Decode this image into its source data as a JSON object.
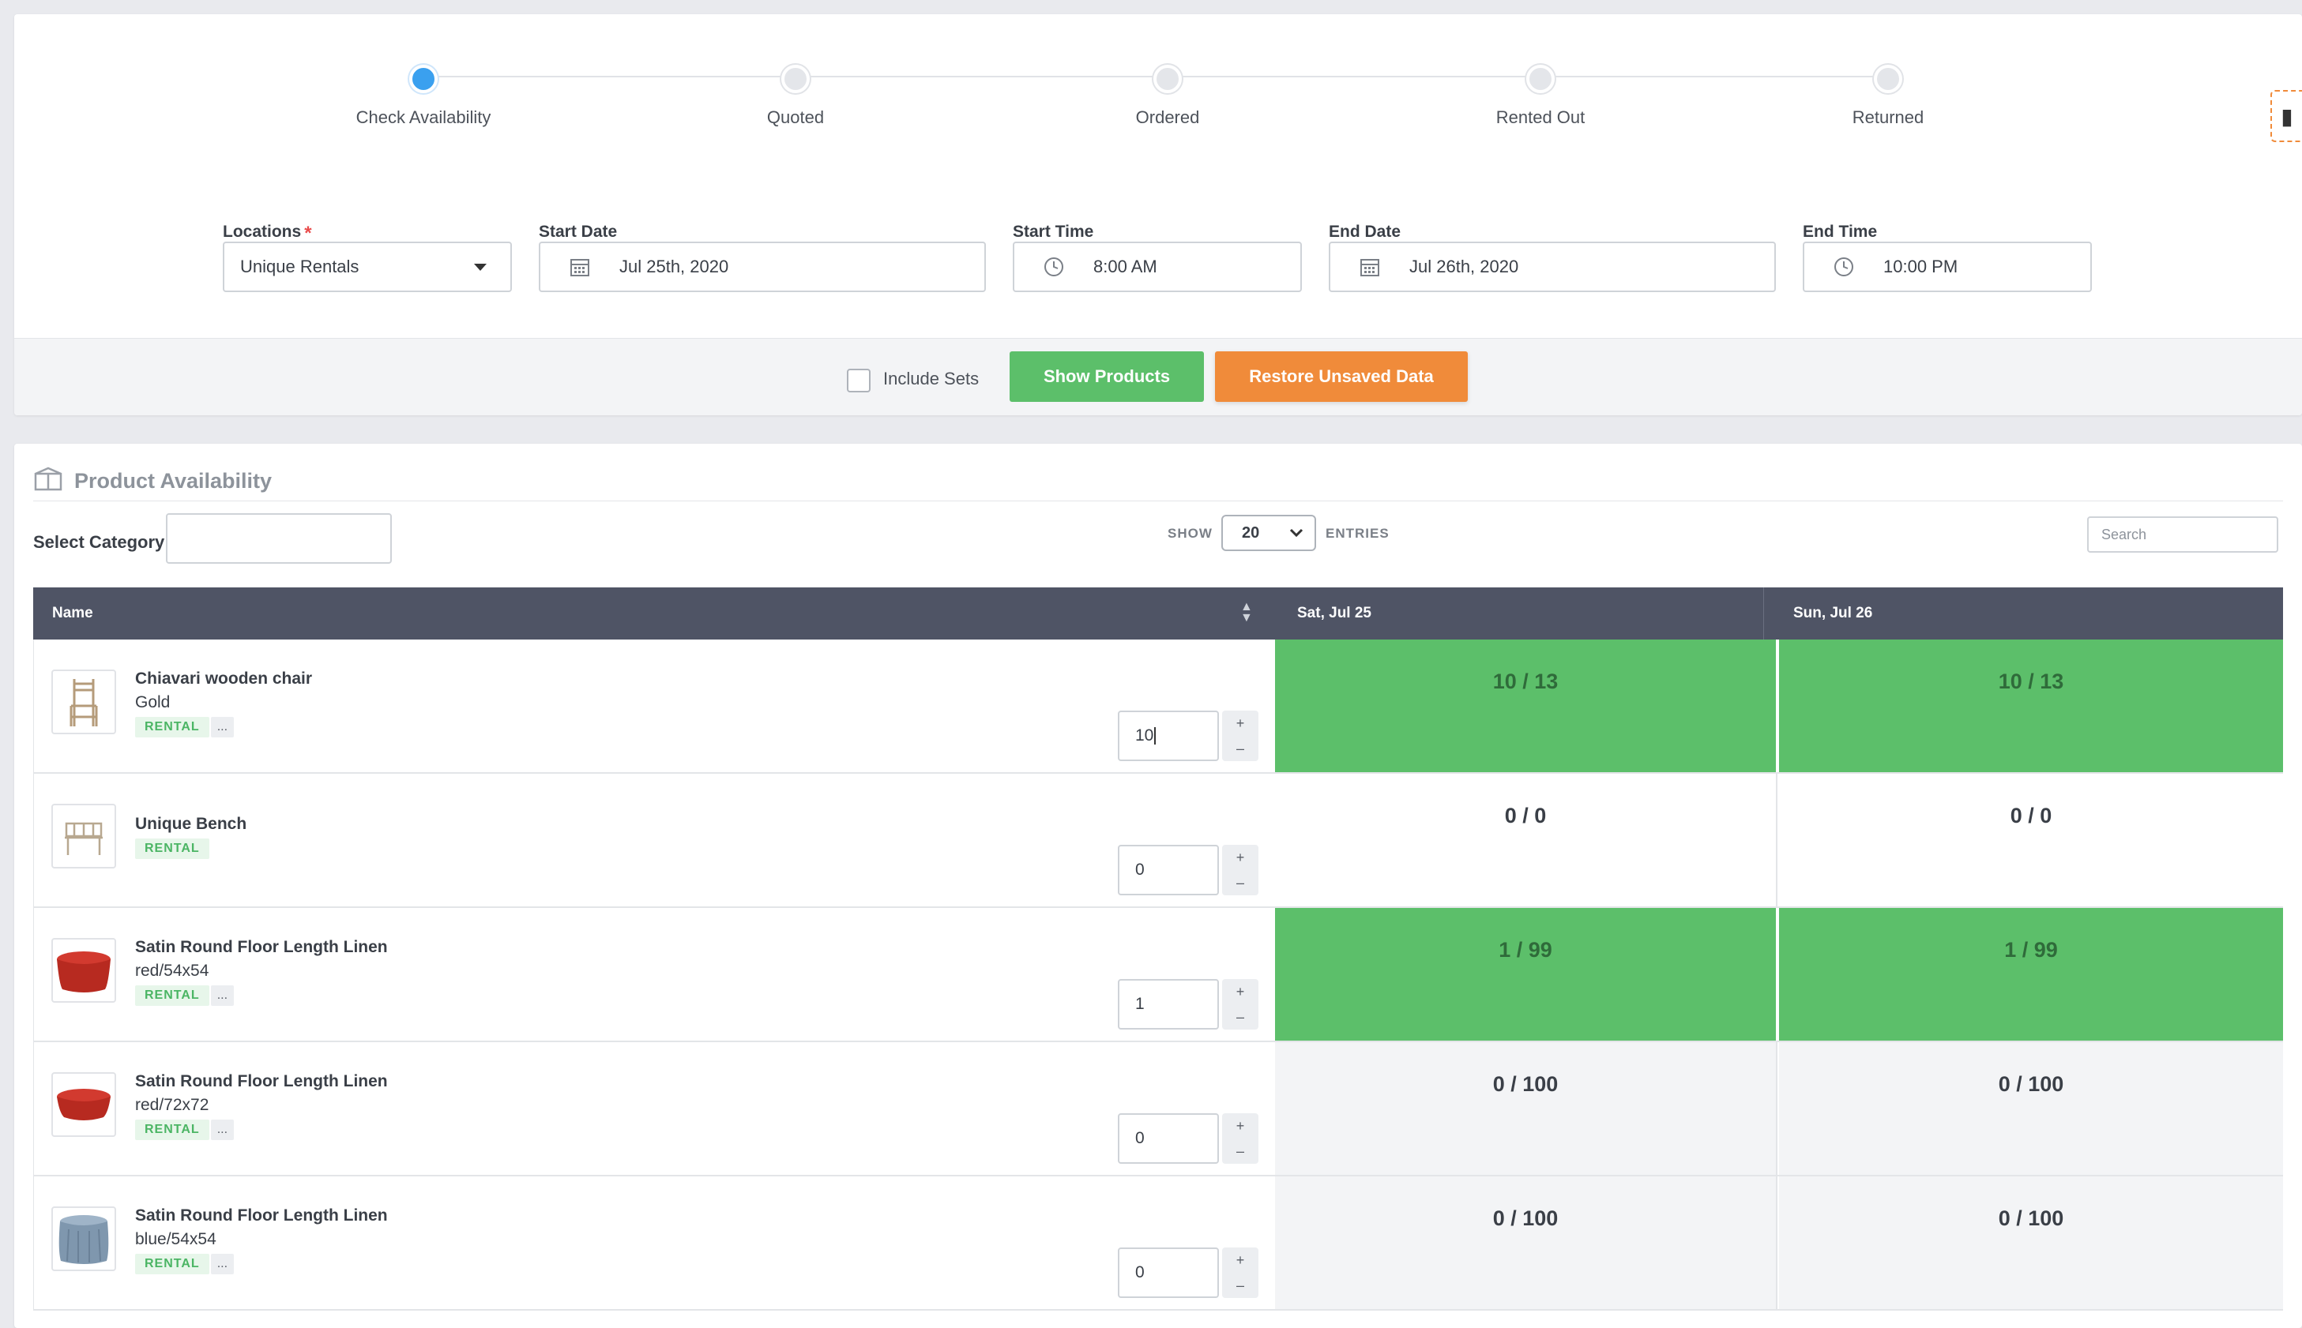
{
  "stepper": {
    "steps": [
      {
        "label": "Check Availability",
        "active": true
      },
      {
        "label": "Quoted",
        "active": false
      },
      {
        "label": "Ordered",
        "active": false
      },
      {
        "label": "Rented Out",
        "active": false
      },
      {
        "label": "Returned",
        "active": false
      }
    ]
  },
  "form": {
    "locations_label": "Locations",
    "locations_required": "*",
    "locations_value": "Unique Rentals",
    "start_date_label": "Start Date",
    "start_date_value": "Jul 25th, 2020",
    "start_time_label": "Start Time",
    "start_time_value": "8:00 AM",
    "end_date_label": "End Date",
    "end_date_value": "Jul 26th, 2020",
    "end_time_label": "End Time",
    "end_time_value": "10:00 PM"
  },
  "actions": {
    "include_sets_label": "Include Sets",
    "include_sets_checked": false,
    "show_products_label": "Show Products",
    "restore_label": "Restore Unsaved Data"
  },
  "availability": {
    "title": "Product Availability",
    "select_category_label": "Select Category",
    "show_label": "SHOW",
    "entries_value": "20",
    "entries_label": "ENTRIES",
    "search_placeholder": "Search",
    "columns": [
      "Name",
      "Sat, Jul 25",
      "Sun, Jul 26"
    ],
    "rows": [
      {
        "name": "Chiavari wooden chair",
        "variant": "Gold",
        "tag": "RENTAL",
        "more": "...",
        "qty": "10",
        "sat": "10 / 13",
        "sun": "10 / 13",
        "status": "green",
        "image": "chair-icon"
      },
      {
        "name": "Unique Bench",
        "variant": "",
        "tag": "RENTAL",
        "more": "",
        "qty": "0",
        "sat": "0 / 0",
        "sun": "0 / 0",
        "status": "white",
        "image": "bench-icon"
      },
      {
        "name": "Satin Round Floor Length Linen",
        "variant": "red/54x54",
        "tag": "RENTAL",
        "more": "...",
        "qty": "1",
        "sat": "1 / 99",
        "sun": "1 / 99",
        "status": "green",
        "image": "red-linen-icon"
      },
      {
        "name": "Satin Round Floor Length Linen",
        "variant": "red/72x72",
        "tag": "RENTAL",
        "more": "...",
        "qty": "0",
        "sat": "0 / 100",
        "sun": "0 / 100",
        "status": "grey",
        "image": "red-linen-icon"
      },
      {
        "name": "Satin Round Floor Length Linen",
        "variant": "blue/54x54",
        "tag": "RENTAL",
        "more": "...",
        "qty": "0",
        "sat": "0 / 100",
        "sun": "0 / 100",
        "status": "grey",
        "image": "blue-linen-icon"
      }
    ]
  },
  "colors": {
    "accent_blue": "#3aa0ef",
    "green": "#5cbf6a",
    "orange": "#f08b3a",
    "table_header": "#4f5465"
  }
}
